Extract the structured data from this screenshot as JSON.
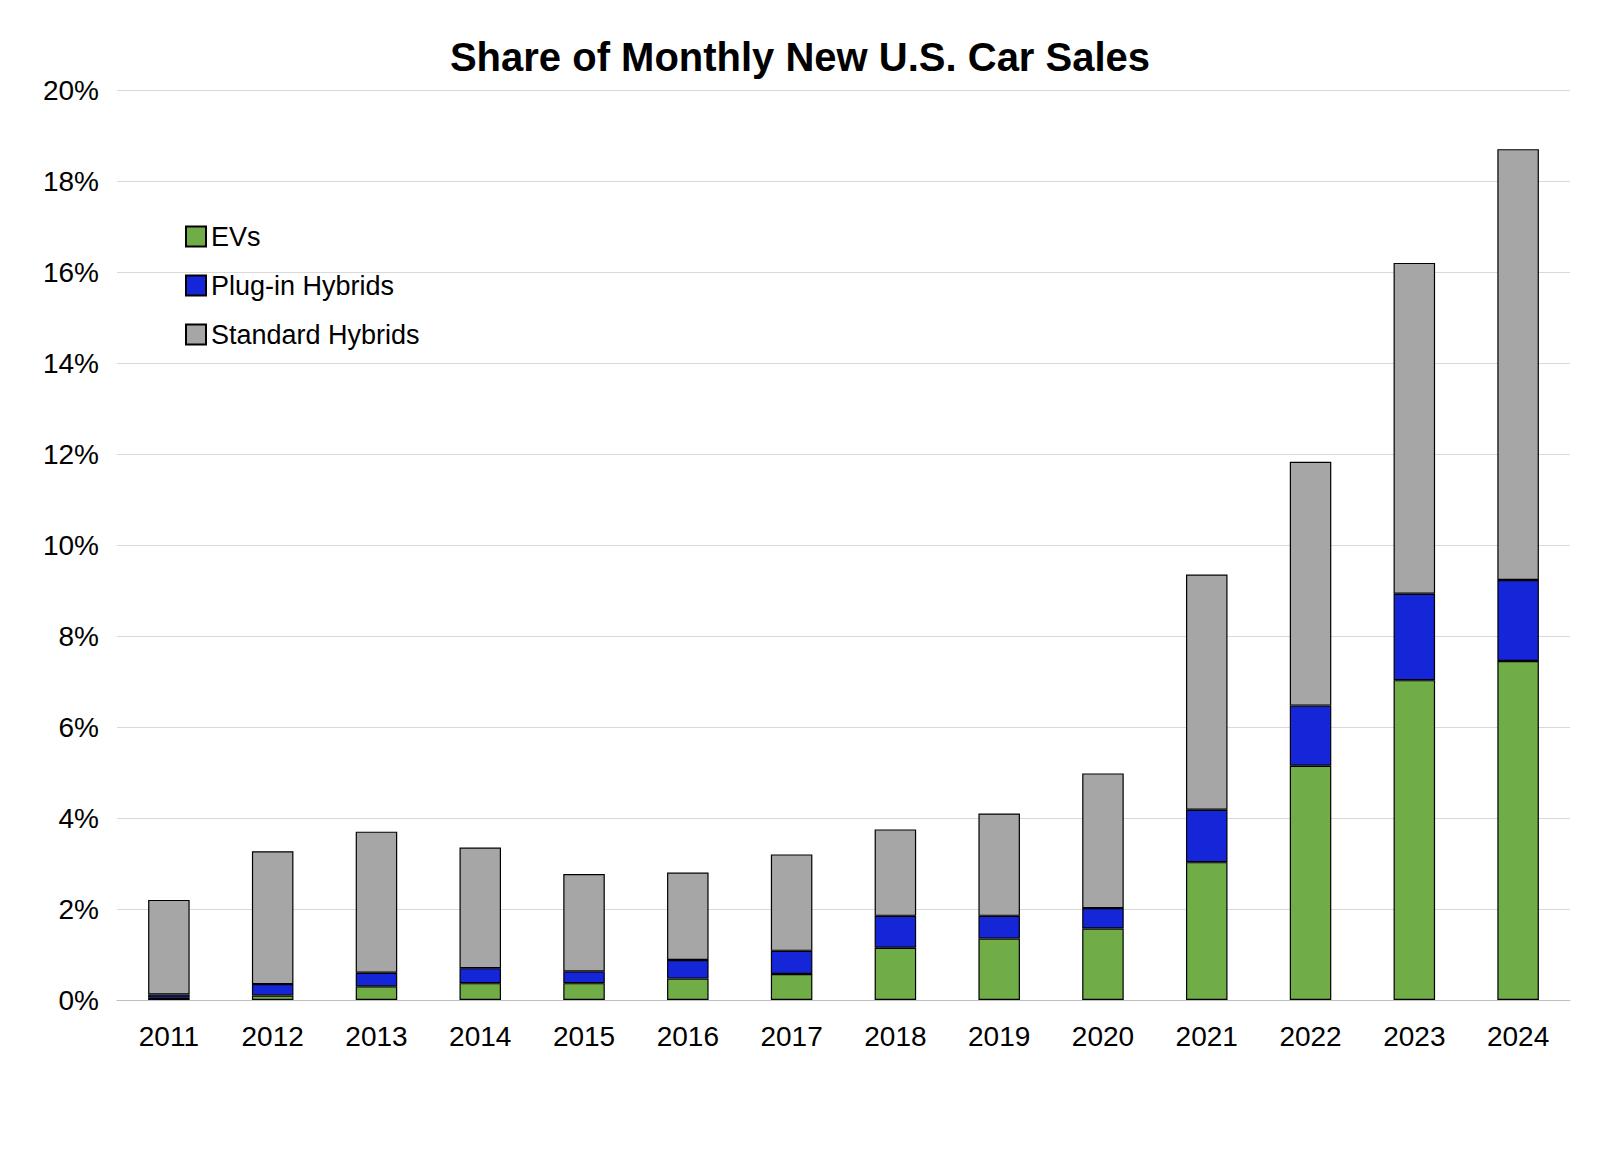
{
  "chart_data": {
    "type": "bar",
    "title": "Share of Monthly New U.S. Car Sales",
    "categories": [
      "2011",
      "2012",
      "2013",
      "2014",
      "2015",
      "2016",
      "2017",
      "2018",
      "2019",
      "2020",
      "2021",
      "2022",
      "2023",
      "2024"
    ],
    "series": [
      {
        "name": "EVs",
        "color": "#70ad47",
        "values": [
          0.05,
          0.1,
          0.3,
          0.37,
          0.37,
          0.47,
          0.57,
          1.15,
          1.35,
          1.57,
          3.03,
          5.15,
          7.03,
          7.45
        ]
      },
      {
        "name": "Plug-in Hybrids",
        "color": "#1525d8",
        "values": [
          0.07,
          0.25,
          0.3,
          0.33,
          0.26,
          0.41,
          0.51,
          0.7,
          0.5,
          0.45,
          1.15,
          1.32,
          1.9,
          1.78
        ]
      },
      {
        "name": "Standard Hybrids",
        "color": "#a6a6a6",
        "values": [
          2.08,
          2.92,
          3.1,
          2.65,
          2.14,
          1.92,
          2.12,
          1.9,
          2.25,
          2.96,
          5.17,
          5.36,
          7.27,
          9.47
        ]
      }
    ],
    "ylim": [
      0,
      20
    ],
    "yticks": [
      {
        "value": 0,
        "label": "0%"
      },
      {
        "value": 2,
        "label": "2%"
      },
      {
        "value": 4,
        "label": "4%"
      },
      {
        "value": 6,
        "label": "6%"
      },
      {
        "value": 8,
        "label": "8%"
      },
      {
        "value": 10,
        "label": "10%"
      },
      {
        "value": 12,
        "label": "12%"
      },
      {
        "value": 14,
        "label": "14%"
      },
      {
        "value": 16,
        "label": "16%"
      },
      {
        "value": 18,
        "label": "18%"
      },
      {
        "value": 20,
        "label": "20%"
      }
    ],
    "stacked": true,
    "grid": true,
    "legend": "upper left"
  }
}
